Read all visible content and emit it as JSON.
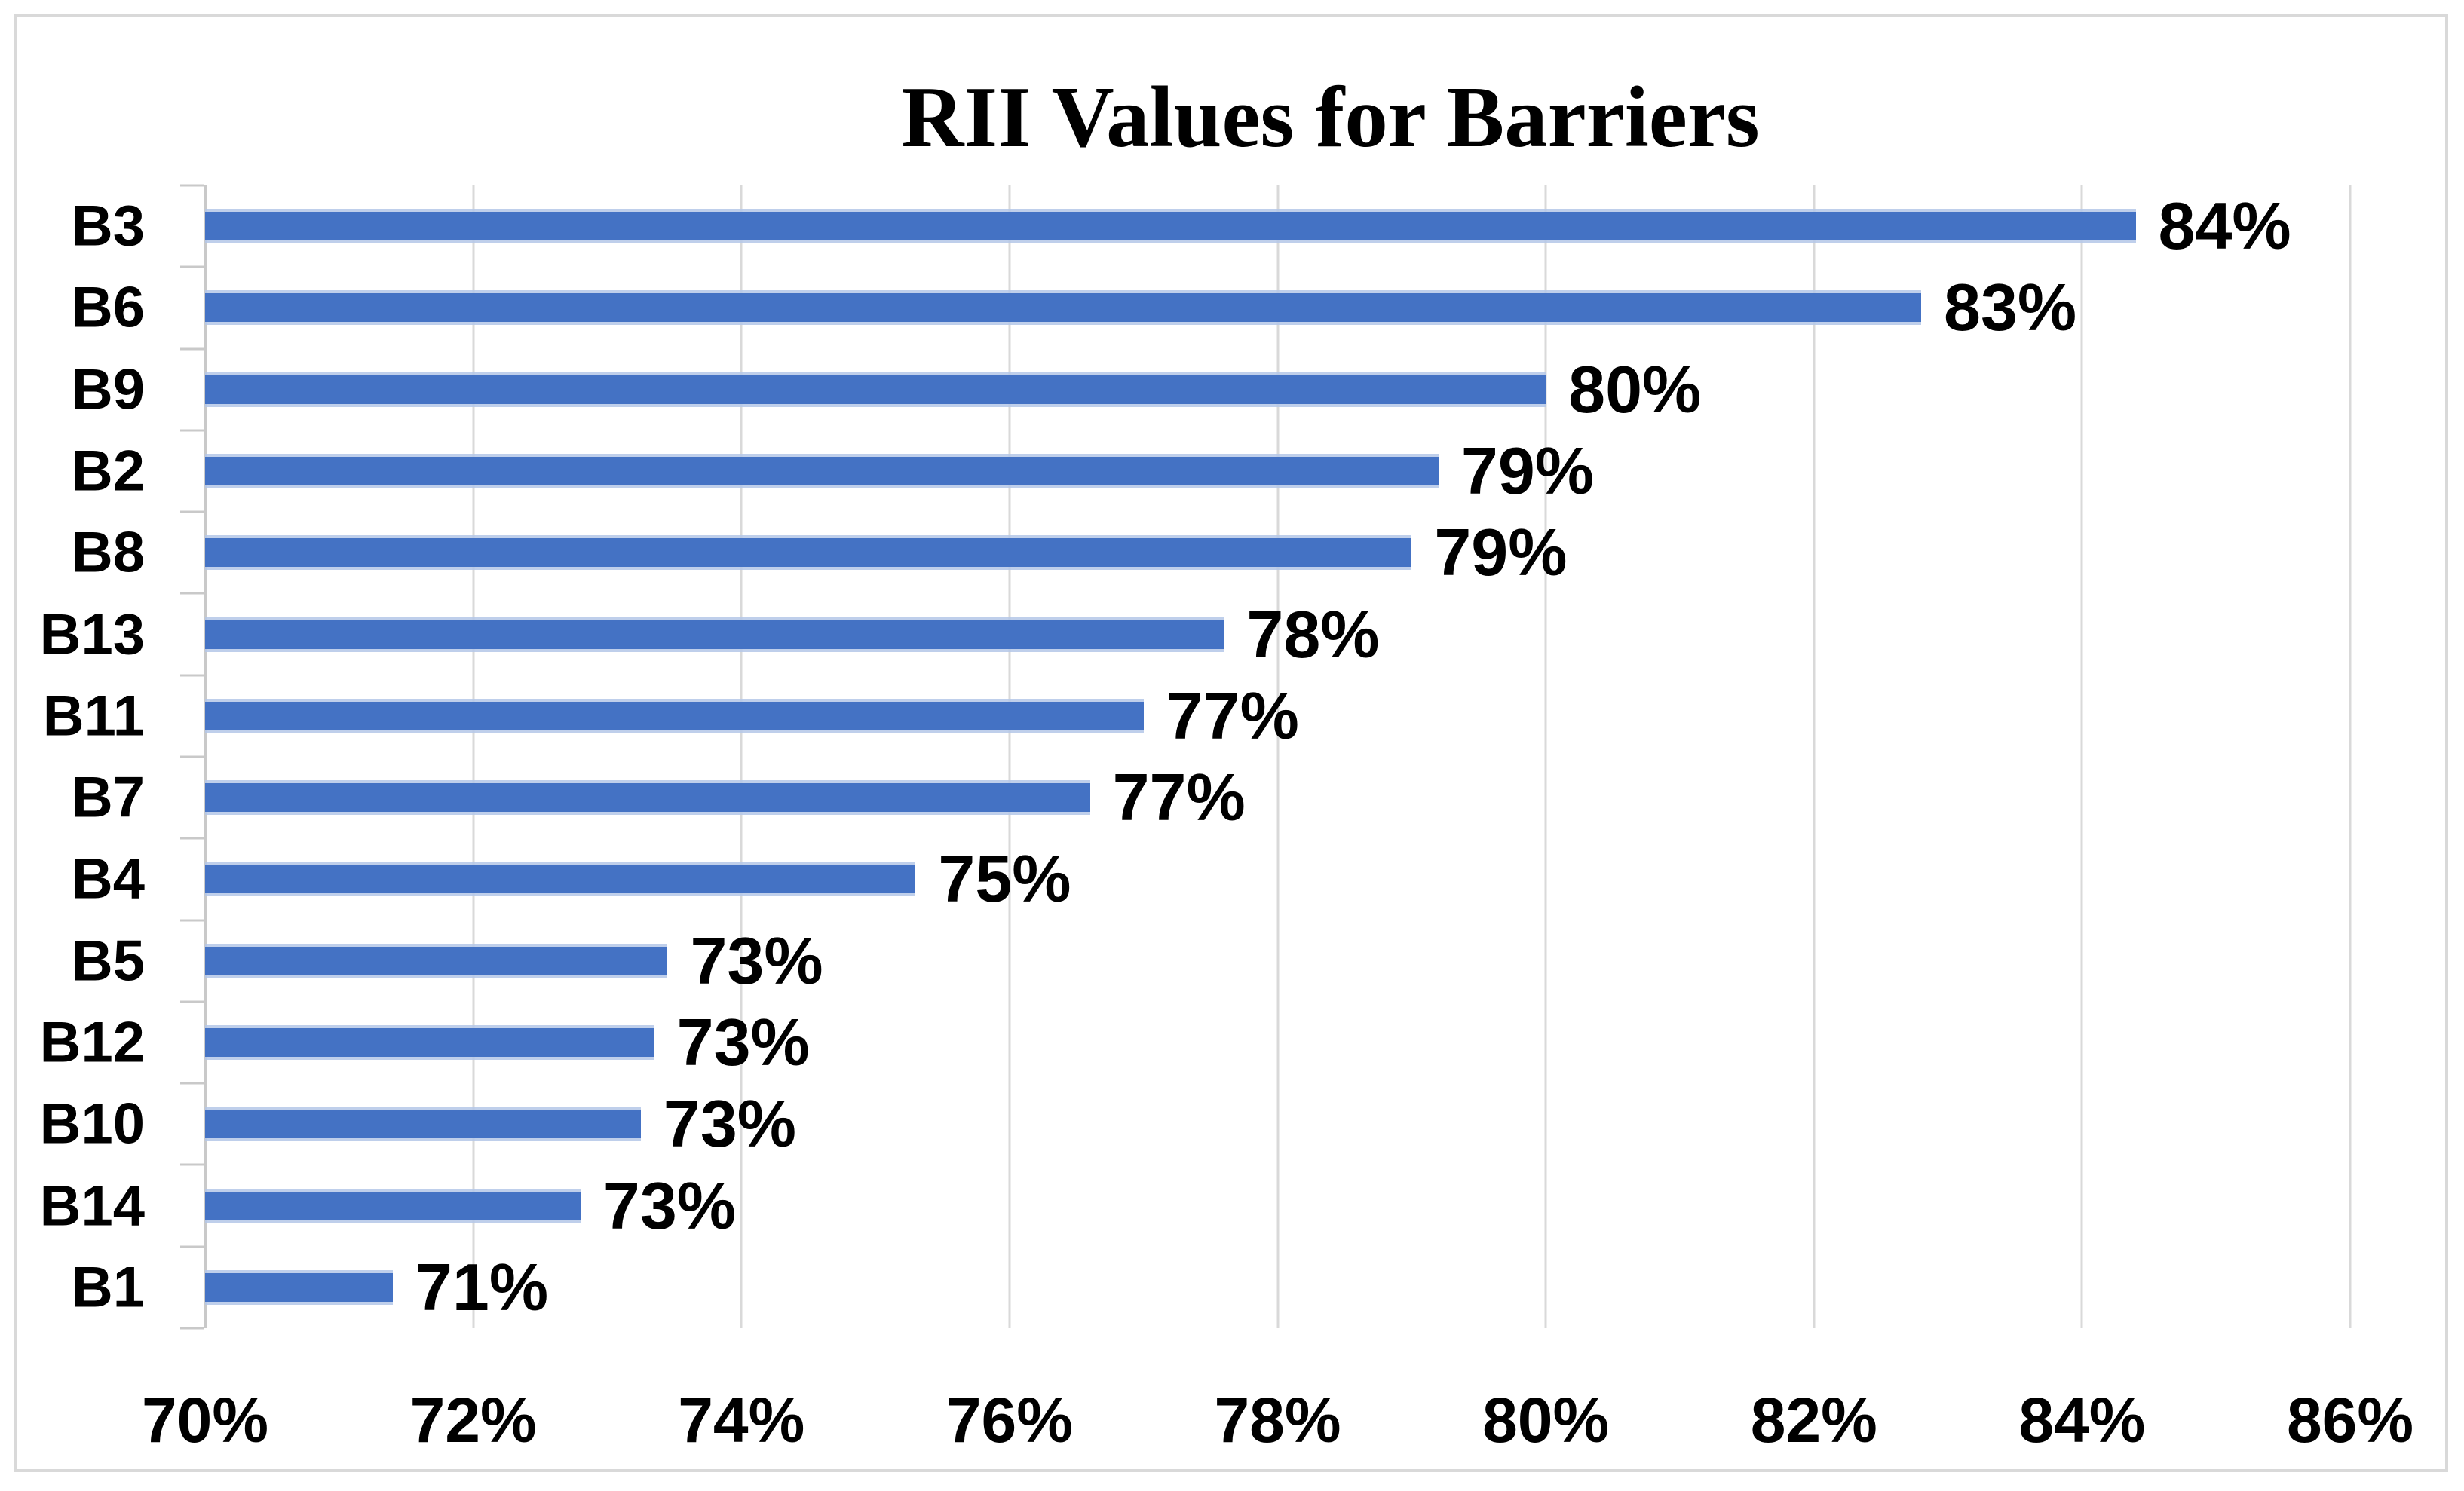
{
  "figure": {
    "background": "#ffffff",
    "border_color": "#d9d9d9"
  },
  "chart_data": {
    "type": "bar",
    "orientation": "horizontal",
    "title": "RII Values for Barriers",
    "categories": [
      "B3",
      "B6",
      "B9",
      "B2",
      "B8",
      "B13",
      "B11",
      "B7",
      "B4",
      "B5",
      "B12",
      "B10",
      "B14",
      "B1"
    ],
    "values": [
      84.4,
      82.8,
      80.0,
      79.2,
      79.0,
      77.6,
      77.0,
      76.6,
      75.3,
      73.45,
      73.35,
      73.25,
      72.8,
      71.4
    ],
    "data_labels": [
      "84%",
      "83%",
      "80%",
      "79%",
      "79%",
      "78%",
      "77%",
      "77%",
      "75%",
      "73%",
      "73%",
      "73%",
      "73%",
      "71%"
    ],
    "xlabel": "",
    "ylabel": "",
    "xlim": [
      70,
      86
    ],
    "x_ticks": [
      70,
      72,
      74,
      76,
      78,
      80,
      82,
      84,
      86
    ],
    "x_tick_labels": [
      "70%",
      "72%",
      "74%",
      "76%",
      "78%",
      "80%",
      "82%",
      "84%",
      "86%"
    ],
    "grid": true,
    "legend": false,
    "bar_color": "#4472c4",
    "bar_edge_color": "#b4c7e7",
    "gridline_color": "#d9d9d9",
    "axis_color": "#c9c9c9",
    "label_color": "#000000",
    "title_color": "#000000"
  }
}
